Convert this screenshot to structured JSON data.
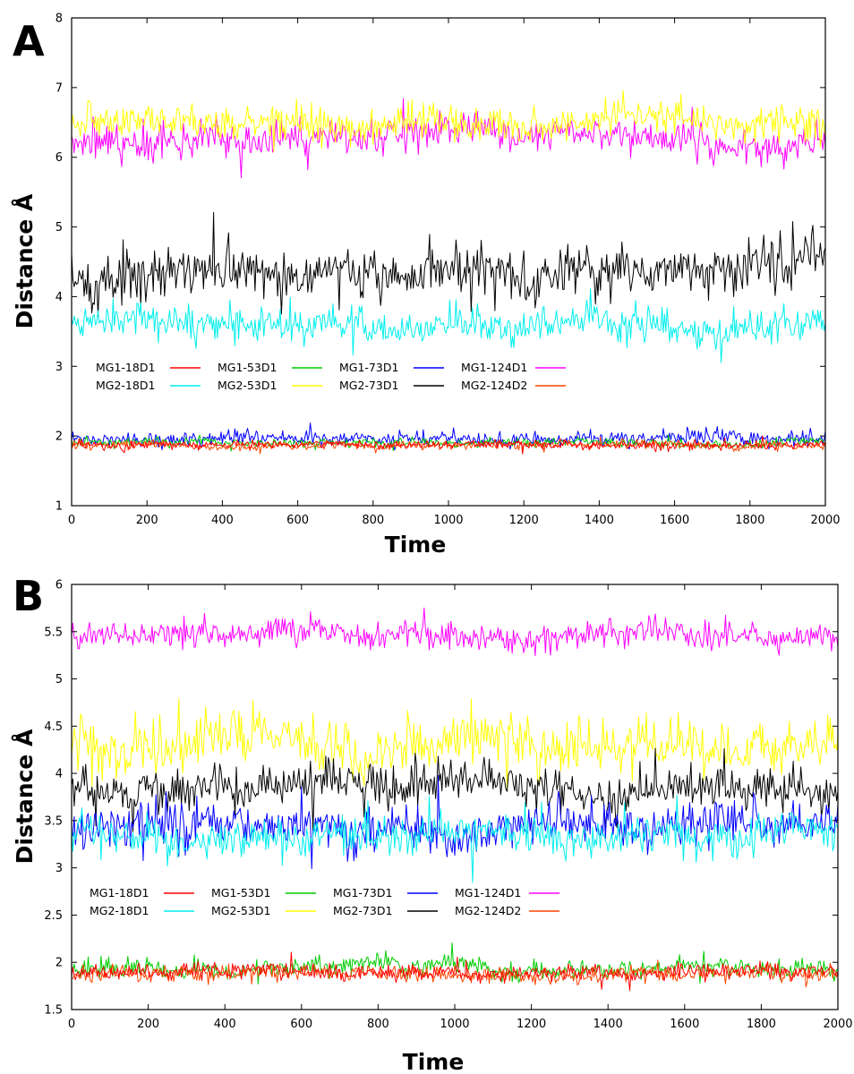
{
  "chart_data": [
    {
      "type": "line",
      "panel_label": "A",
      "title": "",
      "xlabel": "Time",
      "ylabel": "Distance Å",
      "xlim": [
        0,
        2000
      ],
      "ylim": [
        1,
        8
      ],
      "x_ticks": [
        "0",
        "200",
        "400",
        "600",
        "800",
        "1000",
        "1200",
        "1400",
        "1600",
        "1800",
        "2000"
      ],
      "y_ticks": [
        "1",
        "2",
        "3",
        "4",
        "5",
        "6",
        "7",
        "8"
      ],
      "grid": false,
      "legend_position": "middle-left, two rows",
      "series": [
        {
          "name": "MG1-18D1",
          "color": "#ff0000",
          "x_range": [
            0,
            2000
          ],
          "mean": 1.88,
          "noise": 0.03
        },
        {
          "name": "MG1-53D1",
          "color": "#00cc00",
          "x_range": [
            0,
            2000
          ],
          "mean": 1.9,
          "noise": 0.03
        },
        {
          "name": "MG1-73D1",
          "color": "#0000ff",
          "x_range": [
            0,
            2000
          ],
          "mean": 1.96,
          "noise": 0.05
        },
        {
          "name": "MG1-124D1",
          "color": "#ff00ff",
          "x_range": [
            0,
            2000
          ],
          "mean": 6.25,
          "noise": 0.12
        },
        {
          "name": "MG2-18D1",
          "color": "#00eeee",
          "x_range": [
            0,
            2000
          ],
          "mean": 3.62,
          "noise": 0.12
        },
        {
          "name": "MG2-53D1",
          "color": "#ffff00",
          "x_range": [
            0,
            2000
          ],
          "mean": 6.5,
          "noise": 0.12
        },
        {
          "name": "MG2-73D1",
          "color": "#000000",
          "x_range": [
            0,
            2000
          ],
          "mean": 4.35,
          "noise": 0.17
        },
        {
          "name": "MG2-124D2",
          "color": "#ff4400",
          "x_range": [
            0,
            2000
          ],
          "mean": 1.86,
          "noise": 0.03
        }
      ]
    },
    {
      "type": "line",
      "panel_label": "B",
      "title": "",
      "xlabel": "Time",
      "ylabel": "Distance Å",
      "xlim": [
        0,
        2000
      ],
      "ylim": [
        1.5,
        6
      ],
      "x_ticks": [
        "0",
        "200",
        "400",
        "600",
        "800",
        "1000",
        "1200",
        "1400",
        "1600",
        "1800",
        "2000"
      ],
      "y_ticks": [
        "1.5",
        "2",
        "2.5",
        "3",
        "3.5",
        "4",
        "4.5",
        "5",
        "5.5",
        "6"
      ],
      "grid": false,
      "legend_position": "lower-left, two rows",
      "series": [
        {
          "name": "MG1-18D1",
          "color": "#ff0000",
          "x_range": [
            0,
            2000
          ],
          "mean": 1.89,
          "noise": 0.04
        },
        {
          "name": "MG1-53D1",
          "color": "#00cc00",
          "x_range": [
            0,
            2000
          ],
          "mean": 1.94,
          "noise": 0.05
        },
        {
          "name": "MG1-73D1",
          "color": "#0000ff",
          "x_range": [
            0,
            2000
          ],
          "mean": 3.45,
          "noise": 0.11
        },
        {
          "name": "MG1-124D1",
          "color": "#ff00ff",
          "x_range": [
            0,
            2000
          ],
          "mean": 5.47,
          "noise": 0.07
        },
        {
          "name": "MG2-18D1",
          "color": "#00eeee",
          "x_range": [
            0,
            2000
          ],
          "mean": 3.35,
          "noise": 0.1
        },
        {
          "name": "MG2-53D1",
          "color": "#ffff00",
          "x_range": [
            0,
            2000
          ],
          "mean": 4.3,
          "noise": 0.14
        },
        {
          "name": "MG2-73D1",
          "color": "#000000",
          "x_range": [
            0,
            2000
          ],
          "mean": 3.85,
          "noise": 0.11
        },
        {
          "name": "MG2-124D2",
          "color": "#ff4400",
          "x_range": [
            0,
            2000
          ],
          "mean": 1.87,
          "noise": 0.04
        }
      ]
    }
  ]
}
